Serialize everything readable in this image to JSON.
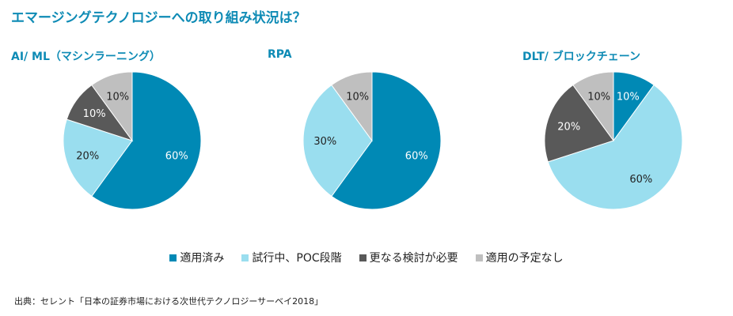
{
  "title": "エマージングテクノロジーへの取り組み状況は？",
  "source": "出典：セレント「日本の証券市場における次世代テクノロジーサーベイ2018」",
  "chart_data": {
    "type": "pie",
    "colors": [
      "#0089b5",
      "#9adeef",
      "#595959",
      "#bfbfbf"
    ],
    "legend": [
      "適用済み",
      "試行中、POC段階",
      "更なる検討が必要",
      "適用の予定なし"
    ],
    "legend_position": "bottom",
    "charts": [
      {
        "title": "AI/ ML（マシンラーニング）",
        "values": [
          60,
          20,
          10,
          10
        ],
        "labels": [
          "60%",
          "20%",
          "10%",
          "10%"
        ]
      },
      {
        "title": "RPA",
        "values": [
          60,
          30,
          0,
          10
        ],
        "labels": [
          "60%",
          "30%",
          "",
          "10%"
        ]
      },
      {
        "title": "DLT/ ブロックチェーン",
        "values": [
          10,
          60,
          20,
          10
        ],
        "labels": [
          "10%",
          "60%",
          "20%",
          "10%"
        ]
      }
    ]
  }
}
